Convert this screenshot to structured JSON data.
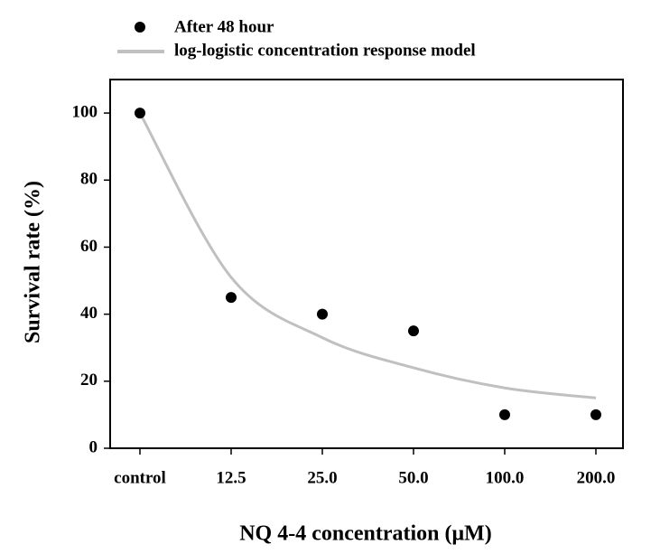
{
  "chart_data": {
    "type": "scatter",
    "x_label": "NQ 4-4 concentration (μM)",
    "y_label": "Survival rate (%)",
    "categories": [
      "control",
      "12.5",
      "25.0",
      "50.0",
      "100.0",
      "200.0"
    ],
    "series": [
      {
        "name": "After 48 hour",
        "kind": "points",
        "color": "#000000",
        "values": [
          100,
          45,
          40,
          35,
          10,
          10
        ]
      },
      {
        "name": "log-logistic concentration response model",
        "kind": "curve",
        "color": "#c0c0c0",
        "values": [
          100,
          51,
          33,
          24,
          18,
          15
        ]
      }
    ],
    "ylim": [
      0,
      110
    ],
    "yticks": [
      0,
      20,
      40,
      60,
      80,
      100
    ],
    "grid": false
  }
}
